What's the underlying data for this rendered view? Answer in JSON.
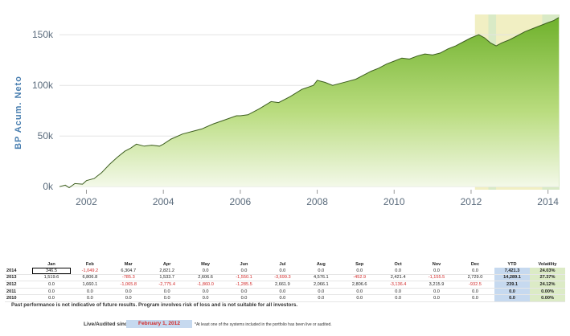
{
  "chart_data": {
    "type": "area",
    "ylabel": "BP Acum. Neto",
    "xlabel": "",
    "title": "",
    "x_ticks": [
      "2002",
      "2004",
      "2006",
      "2008",
      "2010",
      "2012",
      "2014"
    ],
    "y_ticks": [
      "0k",
      "50k",
      "100k",
      "150k"
    ],
    "xlim": [
      2001.3,
      2014.3
    ],
    "ylim": [
      -3000,
      170000
    ],
    "grid": true,
    "colors": {
      "fill_top": "#6fb12c",
      "fill_bottom": "#f4f9ea",
      "line": "#3d5e20",
      "highlight_band": "#f1efc3",
      "highlight_strip": "#d9eac6",
      "axis_text": "#5a6b7c",
      "ylabel": "#4a7fb0"
    },
    "highlight_bands": [
      [
        2012.1,
        2014.3
      ]
    ],
    "highlight_strips": [
      [
        2012.45,
        2012.65
      ],
      [
        2013.85,
        2014.3
      ]
    ],
    "points": [
      [
        2001.3,
        0
      ],
      [
        2001.45,
        1500
      ],
      [
        2001.55,
        -1000
      ],
      [
        2001.7,
        3000
      ],
      [
        2001.9,
        2500
      ],
      [
        2002.0,
        6000
      ],
      [
        2002.2,
        8000
      ],
      [
        2002.4,
        14000
      ],
      [
        2002.6,
        22000
      ],
      [
        2002.8,
        29000
      ],
      [
        2003.0,
        35000
      ],
      [
        2003.15,
        38000
      ],
      [
        2003.3,
        42000
      ],
      [
        2003.5,
        40000
      ],
      [
        2003.7,
        41000
      ],
      [
        2003.9,
        40000
      ],
      [
        2004.0,
        42000
      ],
      [
        2004.2,
        47000
      ],
      [
        2004.5,
        52000
      ],
      [
        2004.8,
        55000
      ],
      [
        2005.0,
        57000
      ],
      [
        2005.3,
        62000
      ],
      [
        2005.6,
        66000
      ],
      [
        2005.9,
        70000
      ],
      [
        2006.0,
        70000
      ],
      [
        2006.2,
        71000
      ],
      [
        2006.5,
        77000
      ],
      [
        2006.8,
        84000
      ],
      [
        2007.0,
        83000
      ],
      [
        2007.3,
        89000
      ],
      [
        2007.6,
        96000
      ],
      [
        2007.9,
        100000
      ],
      [
        2008.0,
        105000
      ],
      [
        2008.2,
        103000
      ],
      [
        2008.4,
        100000
      ],
      [
        2008.6,
        102000
      ],
      [
        2008.8,
        104000
      ],
      [
        2009.0,
        106000
      ],
      [
        2009.2,
        110000
      ],
      [
        2009.4,
        114000
      ],
      [
        2009.6,
        117000
      ],
      [
        2009.8,
        121000
      ],
      [
        2010.0,
        124000
      ],
      [
        2010.2,
        127000
      ],
      [
        2010.4,
        126000
      ],
      [
        2010.6,
        129000
      ],
      [
        2010.8,
        131000
      ],
      [
        2011.0,
        130000
      ],
      [
        2011.2,
        132000
      ],
      [
        2011.4,
        136000
      ],
      [
        2011.6,
        139000
      ],
      [
        2011.8,
        143000
      ],
      [
        2012.0,
        147000
      ],
      [
        2012.2,
        150000
      ],
      [
        2012.35,
        147000
      ],
      [
        2012.5,
        142000
      ],
      [
        2012.65,
        139000
      ],
      [
        2012.8,
        142000
      ],
      [
        2013.0,
        145000
      ],
      [
        2013.2,
        149000
      ],
      [
        2013.4,
        153000
      ],
      [
        2013.6,
        156000
      ],
      [
        2013.8,
        159000
      ],
      [
        2014.0,
        162000
      ],
      [
        2014.15,
        164000
      ],
      [
        2014.28,
        167000
      ]
    ]
  },
  "table": {
    "headers": [
      "",
      "Jan",
      "Feb",
      "Mar",
      "Apr",
      "May",
      "Jun",
      "Jul",
      "Aug",
      "Sep",
      "Oct",
      "Nov",
      "Dec",
      "YTD",
      "Volatility"
    ],
    "rows": [
      {
        "year": "2014",
        "values": [
          "346.5",
          "-1,049.2",
          "6,304.7",
          "2,821.2",
          "0.0",
          "0.0",
          "0.0",
          "0.0",
          "0.0",
          "0.0",
          "0.0",
          "0.0"
        ],
        "ytd": "7,421.3",
        "vol": "24.03%"
      },
      {
        "year": "2013",
        "values": [
          "1,519.6",
          "6,806.8",
          "-785.3",
          "1,533.7",
          "2,606.6",
          "-1,550.1",
          "-3,699.3",
          "4,576.1",
          "-452.9",
          "2,421.4",
          "-1,155.5",
          "2,729.0"
        ],
        "ytd": "14,289.1",
        "vol": "27.37%"
      },
      {
        "year": "2012",
        "values": [
          "0.0",
          "1,660.1",
          "-1,065.8",
          "-2,775.4",
          "-1,860.0",
          "-1,285.5",
          "2,661.9",
          "2,066.1",
          "2,806.6",
          "-3,136.4",
          "3,215.9",
          "-932.5"
        ],
        "ytd": "239.1",
        "vol": "24.12%"
      },
      {
        "year": "2011",
        "values": [
          "0.0",
          "0.0",
          "0.0",
          "0.0",
          "0.0",
          "0.0",
          "0.0",
          "0.0",
          "0.0",
          "0.0",
          "0.0",
          "0.0"
        ],
        "ytd": "0.0",
        "vol": "0.00%"
      },
      {
        "year": "2010",
        "values": [
          "0.0",
          "0.0",
          "0.0",
          "0.0",
          "0.0",
          "0.0",
          "0.0",
          "0.0",
          "0.0",
          "0.0",
          "0.0",
          "0.0"
        ],
        "ytd": "0.0",
        "vol": "0.00%"
      }
    ]
  },
  "disclaimer": "Past performance is not indicative of future results. Program involves risk of loss and is not suitable for all investors.",
  "live": {
    "label": "Live/Audited since:",
    "date": "February 1, 2012",
    "note": "*At least one of the systems included in the portfolio has been live or audited."
  }
}
